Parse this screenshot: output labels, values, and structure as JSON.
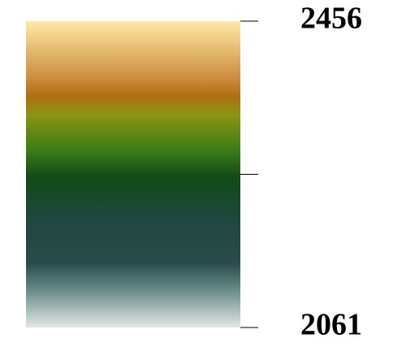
{
  "chart_data": {
    "type": "colorbar",
    "orientation": "vertical",
    "range": [
      2061,
      2456
    ],
    "tick_values": [
      2061,
      2258.5,
      2456
    ],
    "tick_labels": [
      {
        "value": 2456,
        "text": "2456"
      },
      {
        "value": 2061,
        "text": "2061"
      }
    ],
    "colormap_stops": [
      {
        "value": 2456,
        "color": "#ffe9a6"
      },
      {
        "value": 2380,
        "color": "#c98a3a"
      },
      {
        "value": 2360,
        "color": "#b06f10"
      },
      {
        "value": 2335,
        "color": "#8c9414"
      },
      {
        "value": 2290,
        "color": "#3b7d16"
      },
      {
        "value": 2255,
        "color": "#124a17"
      },
      {
        "value": 2200,
        "color": "#1f473f"
      },
      {
        "value": 2145,
        "color": "#2a4b4b"
      },
      {
        "value": 2115,
        "color": "#5a817e"
      },
      {
        "value": 2061,
        "color": "#e3e7e6"
      }
    ]
  }
}
